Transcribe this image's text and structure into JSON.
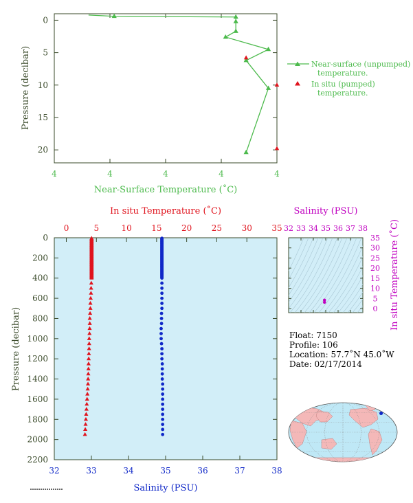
{
  "colors": {
    "green": "#4cba4c",
    "red": "#e0141e",
    "blue": "#1028c8",
    "magenta": "#c000c0",
    "axis_dark": "#3a4a2a",
    "panel_fill": "#d2eef8",
    "land": "#f4b8b8",
    "ocean": "#bfe8f6"
  },
  "chart_data": [
    {
      "type": "line",
      "xlabel": "Near-Surface Temperature (˚C)",
      "ylabel": "Pressure (decibar)",
      "x_tick_labels": [
        "4",
        "4",
        "4",
        "4",
        "4"
      ],
      "y_ticks": [
        0,
        5,
        10,
        15,
        20
      ],
      "ylim": [
        22,
        -1
      ],
      "legend_placement": "right",
      "series": [
        {
          "name": "Near-surface (unpumped) temperature.",
          "marker": "triangle",
          "points": [
            {
              "x": 4.12,
              "y": -0.8
            },
            {
              "x": 4.135,
              "y": -0.6
            },
            {
              "x": 4.206,
              "y": -0.5
            },
            {
              "x": 4.206,
              "y": 0.2
            },
            {
              "x": 4.206,
              "y": 1.7
            },
            {
              "x": 4.2,
              "y": 2.6
            },
            {
              "x": 4.225,
              "y": 4.5
            },
            {
              "x": 4.212,
              "y": 6.2
            },
            {
              "x": 4.225,
              "y": 10.5
            },
            {
              "x": 4.212,
              "y": 20.4
            }
          ]
        },
        {
          "name": "In situ (pumped) temperature.",
          "marker": "triangle",
          "points": [
            {
              "x": 4.212,
              "y": 5.8
            },
            {
              "x": 4.23,
              "y": 10.0
            },
            {
              "x": 4.23,
              "y": 19.8
            }
          ]
        }
      ]
    },
    {
      "type": "scatter",
      "ylabel": "Pressure (decibar)",
      "x_top_label": "In situ Temperature (˚C)",
      "x_bottom_label": "Salinity (PSU)",
      "x_top_ticks": [
        0,
        5,
        10,
        15,
        20,
        25,
        30,
        35
      ],
      "x_bottom_ticks": [
        32,
        33,
        34,
        35,
        36,
        37,
        38
      ],
      "y_ticks": [
        0,
        200,
        400,
        600,
        800,
        1000,
        1200,
        1400,
        1600,
        1800,
        2000,
        2200
      ],
      "temperature_range": [
        -2,
        35
      ],
      "salinity_range": [
        32,
        38
      ],
      "pressure_range": [
        0,
        2200
      ],
      "series": [
        {
          "name": "In situ Temperature (˚C)",
          "marker": "triangle",
          "points": [
            [
              4.2,
              5
            ],
            [
              4.2,
              10
            ],
            [
              4.2,
              15
            ],
            [
              4.2,
              20
            ],
            [
              4.2,
              25
            ],
            [
              4.2,
              30
            ],
            [
              4.2,
              35
            ],
            [
              4.2,
              40
            ],
            [
              4.2,
              45
            ],
            [
              4.2,
              50
            ],
            [
              4.2,
              55
            ],
            [
              4.2,
              60
            ],
            [
              4.2,
              65
            ],
            [
              4.2,
              70
            ],
            [
              4.2,
              75
            ],
            [
              4.2,
              80
            ],
            [
              4.2,
              85
            ],
            [
              4.2,
              90
            ],
            [
              4.2,
              95
            ],
            [
              4.2,
              100
            ],
            [
              4.2,
              105
            ],
            [
              4.2,
              110
            ],
            [
              4.2,
              115
            ],
            [
              4.2,
              120
            ],
            [
              4.2,
              125
            ],
            [
              4.2,
              130
            ],
            [
              4.2,
              135
            ],
            [
              4.2,
              140
            ],
            [
              4.2,
              145
            ],
            [
              4.2,
              150
            ],
            [
              4.2,
              155
            ],
            [
              4.2,
              160
            ],
            [
              4.2,
              165
            ],
            [
              4.2,
              170
            ],
            [
              4.2,
              175
            ],
            [
              4.2,
              180
            ],
            [
              4.2,
              185
            ],
            [
              4.2,
              190
            ],
            [
              4.2,
              195
            ],
            [
              4.2,
              200
            ],
            [
              4.2,
              205
            ],
            [
              4.2,
              210
            ],
            [
              4.2,
              215
            ],
            [
              4.2,
              220
            ],
            [
              4.2,
              225
            ],
            [
              4.2,
              230
            ],
            [
              4.2,
              235
            ],
            [
              4.2,
              240
            ],
            [
              4.2,
              245
            ],
            [
              4.2,
              250
            ],
            [
              4.2,
              255
            ],
            [
              4.2,
              260
            ],
            [
              4.2,
              265
            ],
            [
              4.2,
              270
            ],
            [
              4.2,
              275
            ],
            [
              4.2,
              280
            ],
            [
              4.2,
              285
            ],
            [
              4.2,
              290
            ],
            [
              4.2,
              295
            ],
            [
              4.2,
              300
            ],
            [
              4.2,
              305
            ],
            [
              4.2,
              310
            ],
            [
              4.2,
              315
            ],
            [
              4.2,
              320
            ],
            [
              4.2,
              325
            ],
            [
              4.2,
              330
            ],
            [
              4.2,
              335
            ],
            [
              4.2,
              340
            ],
            [
              4.2,
              345
            ],
            [
              4.2,
              350
            ],
            [
              4.2,
              355
            ],
            [
              4.2,
              360
            ],
            [
              4.2,
              365
            ],
            [
              4.2,
              370
            ],
            [
              4.2,
              375
            ],
            [
              4.2,
              380
            ],
            [
              4.2,
              385
            ],
            [
              4.2,
              390
            ],
            [
              4.2,
              395
            ],
            [
              4.2,
              400
            ],
            [
              4.15,
              450
            ],
            [
              4.12,
              500
            ],
            [
              4.1,
              550
            ],
            [
              4.05,
              600
            ],
            [
              4.0,
              650
            ],
            [
              4.0,
              700
            ],
            [
              3.95,
              750
            ],
            [
              3.9,
              800
            ],
            [
              3.9,
              850
            ],
            [
              3.88,
              900
            ],
            [
              3.85,
              950
            ],
            [
              3.8,
              1000
            ],
            [
              3.8,
              1050
            ],
            [
              3.78,
              1100
            ],
            [
              3.75,
              1150
            ],
            [
              3.72,
              1200
            ],
            [
              3.7,
              1250
            ],
            [
              3.68,
              1300
            ],
            [
              3.65,
              1350
            ],
            [
              3.62,
              1400
            ],
            [
              3.6,
              1450
            ],
            [
              3.55,
              1500
            ],
            [
              3.5,
              1550
            ],
            [
              3.45,
              1600
            ],
            [
              3.4,
              1650
            ],
            [
              3.35,
              1700
            ],
            [
              3.3,
              1750
            ],
            [
              3.25,
              1800
            ],
            [
              3.2,
              1850
            ],
            [
              3.15,
              1900
            ],
            [
              3.1,
              1950
            ]
          ]
        },
        {
          "name": "Salinity (PSU)",
          "marker": "circle",
          "points": [
            [
              34.9,
              5
            ],
            [
              34.9,
              10
            ],
            [
              34.9,
              15
            ],
            [
              34.9,
              20
            ],
            [
              34.9,
              25
            ],
            [
              34.9,
              30
            ],
            [
              34.9,
              35
            ],
            [
              34.9,
              40
            ],
            [
              34.9,
              45
            ],
            [
              34.9,
              50
            ],
            [
              34.9,
              55
            ],
            [
              34.9,
              60
            ],
            [
              34.9,
              65
            ],
            [
              34.9,
              70
            ],
            [
              34.9,
              75
            ],
            [
              34.9,
              80
            ],
            [
              34.9,
              85
            ],
            [
              34.9,
              90
            ],
            [
              34.9,
              95
            ],
            [
              34.9,
              100
            ],
            [
              34.9,
              105
            ],
            [
              34.9,
              110
            ],
            [
              34.9,
              115
            ],
            [
              34.9,
              120
            ],
            [
              34.9,
              125
            ],
            [
              34.9,
              130
            ],
            [
              34.9,
              135
            ],
            [
              34.9,
              140
            ],
            [
              34.9,
              145
            ],
            [
              34.9,
              150
            ],
            [
              34.9,
              155
            ],
            [
              34.9,
              160
            ],
            [
              34.9,
              165
            ],
            [
              34.9,
              170
            ],
            [
              34.9,
              175
            ],
            [
              34.9,
              180
            ],
            [
              34.9,
              185
            ],
            [
              34.9,
              190
            ],
            [
              34.9,
              195
            ],
            [
              34.9,
              200
            ],
            [
              34.9,
              205
            ],
            [
              34.9,
              210
            ],
            [
              34.9,
              215
            ],
            [
              34.9,
              220
            ],
            [
              34.9,
              225
            ],
            [
              34.9,
              230
            ],
            [
              34.9,
              235
            ],
            [
              34.9,
              240
            ],
            [
              34.9,
              245
            ],
            [
              34.9,
              250
            ],
            [
              34.9,
              255
            ],
            [
              34.9,
              260
            ],
            [
              34.9,
              265
            ],
            [
              34.9,
              270
            ],
            [
              34.9,
              275
            ],
            [
              34.9,
              280
            ],
            [
              34.9,
              285
            ],
            [
              34.9,
              290
            ],
            [
              34.9,
              295
            ],
            [
              34.9,
              300
            ],
            [
              34.9,
              305
            ],
            [
              34.9,
              310
            ],
            [
              34.9,
              315
            ],
            [
              34.9,
              320
            ],
            [
              34.9,
              325
            ],
            [
              34.9,
              330
            ],
            [
              34.9,
              335
            ],
            [
              34.9,
              340
            ],
            [
              34.9,
              345
            ],
            [
              34.9,
              350
            ],
            [
              34.9,
              355
            ],
            [
              34.9,
              360
            ],
            [
              34.9,
              365
            ],
            [
              34.9,
              370
            ],
            [
              34.9,
              375
            ],
            [
              34.9,
              380
            ],
            [
              34.9,
              385
            ],
            [
              34.9,
              390
            ],
            [
              34.9,
              395
            ],
            [
              34.9,
              400
            ],
            [
              34.9,
              450
            ],
            [
              34.9,
              500
            ],
            [
              34.9,
              550
            ],
            [
              34.9,
              600
            ],
            [
              34.9,
              650
            ],
            [
              34.9,
              700
            ],
            [
              34.89,
              750
            ],
            [
              34.89,
              800
            ],
            [
              34.89,
              850
            ],
            [
              34.88,
              900
            ],
            [
              34.88,
              950
            ],
            [
              34.88,
              1000
            ],
            [
              34.89,
              1050
            ],
            [
              34.9,
              1100
            ],
            [
              34.9,
              1150
            ],
            [
              34.9,
              1200
            ],
            [
              34.91,
              1250
            ],
            [
              34.91,
              1300
            ],
            [
              34.91,
              1350
            ],
            [
              34.91,
              1400
            ],
            [
              34.92,
              1450
            ],
            [
              34.92,
              1500
            ],
            [
              34.92,
              1550
            ],
            [
              34.92,
              1600
            ],
            [
              34.92,
              1650
            ],
            [
              34.92,
              1700
            ],
            [
              34.92,
              1750
            ],
            [
              34.92,
              1800
            ],
            [
              34.92,
              1850
            ],
            [
              34.92,
              1900
            ],
            [
              34.92,
              1950
            ]
          ]
        }
      ]
    },
    {
      "type": "scatter",
      "xlabel": "Salinity (PSU)",
      "ylabel": "In situ Temperature (˚C)",
      "x_ticks": [
        32,
        33,
        34,
        35,
        36,
        37,
        38
      ],
      "y_ticks": [
        0,
        5,
        10,
        15,
        20,
        25,
        30,
        35
      ],
      "xlim": [
        32,
        38
      ],
      "ylim": [
        -2,
        35
      ],
      "series": [
        {
          "marker": "circle",
          "points": [
            [
              34.9,
              4.2
            ],
            [
              34.9,
              3.1
            ]
          ]
        }
      ]
    }
  ],
  "float_info": {
    "float": "Float:  7150",
    "profile": "Profile:  106",
    "location": "Location:  57.7˚N  45.0˚W",
    "date": "Date:  02/17/2014"
  },
  "map": {
    "marker_latitude": 57.7,
    "marker_longitude": -45.0
  }
}
